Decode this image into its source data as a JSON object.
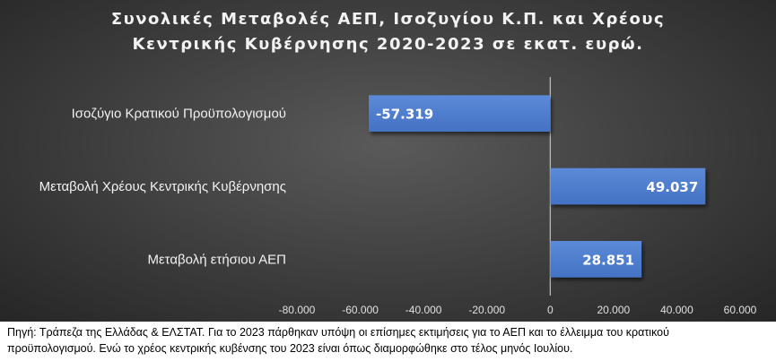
{
  "chart_data": {
    "type": "bar",
    "orientation": "horizontal",
    "title_lines": [
      "Συνολικές Μεταβολές ΑΕΠ, Ισοζυγίου Κ.Π. και Χρέους",
      "Κεντρικής Κυβέρνησης 2020-2023 σε εκατ. ευρώ."
    ],
    "categories": [
      "Ισοζύγιο Κρατικού Προϋπολογισμού",
      "Μεταβολή Χρέους Κεντρικής Κυβέρνησης",
      "Μεταβολή ετήσιου ΑΕΠ"
    ],
    "values": [
      -57319,
      49037,
      28851
    ],
    "value_labels": [
      "-57.319",
      "49.037",
      "28.851"
    ],
    "xlim": [
      -80000,
      60000
    ],
    "xticks": [
      -80000,
      -60000,
      -40000,
      -20000,
      0,
      20000,
      40000,
      60000
    ],
    "xtick_labels": [
      "-80.000",
      "-60.000",
      "-40.000",
      "-20.000",
      "0",
      "20.000",
      "40.000",
      "60.000"
    ],
    "grid": false,
    "colors": {
      "bar": "#4472c4",
      "background": "#404040",
      "text": "#f2f2f2"
    }
  },
  "source_note": {
    "line1": "Πηγή: Τράπεζα της Ελλάδας & ΕΛΣΤΑΤ. Για το 2023 πάρθηκαν υπόψη οι επίσημες εκτιμήσεις για το ΑΕΠ και το έλλειμμα του κρατικού",
    "line2": "προϋπολογισμού. Ενώ το χρέος κεντρικής κυβένσης του 2023 είναι όπως διαμορφώθηκε στο τέλος μηνός Ιουλίου."
  }
}
